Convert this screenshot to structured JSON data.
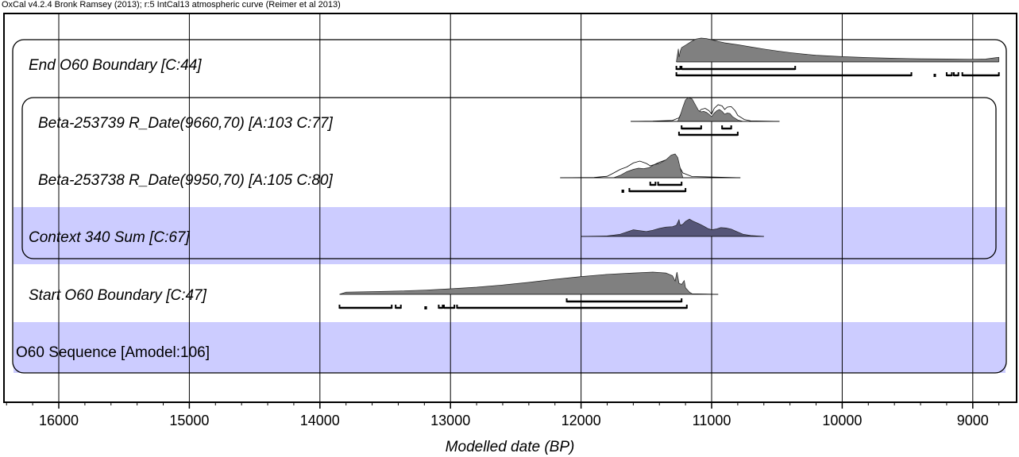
{
  "header": "OxCal v4.2.4 Bronk Ramsey (2013); r:5 IntCal13 atmospheric curve (Reimer et al 2013)",
  "chart_data": {
    "type": "area",
    "title": "",
    "xlabel": "Modelled date (BP)",
    "ylabel": "",
    "xlim": [
      16400,
      8750
    ],
    "x_reversed": true,
    "grid": true,
    "ticks": [
      16000,
      15000,
      14000,
      13000,
      12000,
      11000,
      10000,
      9000
    ],
    "tick_labels": [
      "16000",
      "15000",
      "14000",
      "13000",
      "12000",
      "11000",
      "10000",
      "9000"
    ],
    "rows": [
      {
        "label": "End O60 Boundary [C:44]",
        "shaded": false,
        "prior": null,
        "posterior": [
          [
            11270,
            0
          ],
          [
            11265,
            0.18
          ],
          [
            11255,
            0.55
          ],
          [
            11250,
            0.2
          ],
          [
            11240,
            0.45
          ],
          [
            11230,
            0.6
          ],
          [
            11200,
            0.7
          ],
          [
            11160,
            0.84
          ],
          [
            11120,
            0.96
          ],
          [
            11080,
            1.0
          ],
          [
            11040,
            0.98
          ],
          [
            11000,
            0.93
          ],
          [
            10950,
            0.86
          ],
          [
            10900,
            0.8
          ],
          [
            10800,
            0.72
          ],
          [
            10700,
            0.63
          ],
          [
            10600,
            0.54
          ],
          [
            10500,
            0.46
          ],
          [
            10400,
            0.39
          ],
          [
            10300,
            0.33
          ],
          [
            10200,
            0.28
          ],
          [
            10000,
            0.22
          ],
          [
            9800,
            0.18
          ],
          [
            9600,
            0.15
          ],
          [
            9400,
            0.13
          ],
          [
            9200,
            0.12
          ],
          [
            9000,
            0.11
          ],
          [
            8900,
            0.12
          ],
          [
            8820,
            0.18
          ],
          [
            8800,
            0.19
          ],
          [
            8800,
            0
          ]
        ],
        "range_68": [
          [
            11270,
            11240
          ],
          [
            11230,
            10360
          ]
        ],
        "range_95": [
          [
            11270,
            9470
          ],
          [
            9300,
            9285
          ],
          [
            9200,
            9160
          ],
          [
            9145,
            9110
          ],
          [
            9080,
            8800
          ]
        ]
      },
      {
        "label": "Beta-253739 R_Date(9660,70) [A:103 C:77]",
        "shaded": false,
        "prior": [
          [
            11620,
            0
          ],
          [
            11450,
            0.01
          ],
          [
            11300,
            0.04
          ],
          [
            11250,
            0.15
          ],
          [
            11220,
            0.5
          ],
          [
            11200,
            0.8
          ],
          [
            11180,
            0.9
          ],
          [
            11150,
            0.85
          ],
          [
            11120,
            0.6
          ],
          [
            11100,
            0.4
          ],
          [
            11080,
            0.5
          ],
          [
            11050,
            0.55
          ],
          [
            11020,
            0.45
          ],
          [
            11000,
            0.3
          ],
          [
            10980,
            0.55
          ],
          [
            10950,
            0.7
          ],
          [
            10920,
            0.65
          ],
          [
            10900,
            0.5
          ],
          [
            10880,
            0.6
          ],
          [
            10850,
            0.62
          ],
          [
            10820,
            0.45
          ],
          [
            10800,
            0.25
          ],
          [
            10750,
            0.08
          ],
          [
            10700,
            0.02
          ],
          [
            10480,
            0
          ]
        ],
        "posterior": [
          [
            11260,
            0
          ],
          [
            11240,
            0.25
          ],
          [
            11220,
            0.6
          ],
          [
            11200,
            0.9
          ],
          [
            11180,
            1.0
          ],
          [
            11150,
            0.95
          ],
          [
            11120,
            0.65
          ],
          [
            11100,
            0.45
          ],
          [
            11080,
            0.4
          ],
          [
            11060,
            0.42
          ],
          [
            11040,
            0.38
          ],
          [
            11020,
            0.3
          ],
          [
            11000,
            0.2
          ],
          [
            10980,
            0.35
          ],
          [
            10960,
            0.45
          ],
          [
            10940,
            0.5
          ],
          [
            10920,
            0.42
          ],
          [
            10900,
            0.3
          ],
          [
            10880,
            0.35
          ],
          [
            10860,
            0.33
          ],
          [
            10840,
            0.2
          ],
          [
            10800,
            0.06
          ],
          [
            10760,
            0
          ]
        ],
        "range_68": [
          [
            11230,
            11080
          ],
          [
            10920,
            10850
          ]
        ],
        "range_95": [
          [
            11250,
            10800
          ]
        ]
      },
      {
        "label": "Beta-253738 R_Date(9950,70) [A:105 C:80]",
        "shaded": false,
        "prior": [
          [
            12160,
            0
          ],
          [
            11900,
            0.01
          ],
          [
            11800,
            0.06
          ],
          [
            11750,
            0.2
          ],
          [
            11700,
            0.35
          ],
          [
            11650,
            0.45
          ],
          [
            11600,
            0.62
          ],
          [
            11550,
            0.7
          ],
          [
            11500,
            0.6
          ],
          [
            11470,
            0.5
          ],
          [
            11440,
            0.55
          ],
          [
            11400,
            0.65
          ],
          [
            11350,
            0.75
          ],
          [
            11300,
            0.85
          ],
          [
            11270,
            0.8
          ],
          [
            11250,
            0.5
          ],
          [
            11220,
            0.2
          ],
          [
            11150,
            0.05
          ],
          [
            10780,
            0
          ]
        ],
        "posterior": [
          [
            11750,
            0
          ],
          [
            11700,
            0.1
          ],
          [
            11650,
            0.25
          ],
          [
            11600,
            0.35
          ],
          [
            11560,
            0.4
          ],
          [
            11520,
            0.38
          ],
          [
            11480,
            0.42
          ],
          [
            11440,
            0.55
          ],
          [
            11400,
            0.6
          ],
          [
            11350,
            0.75
          ],
          [
            11310,
            0.95
          ],
          [
            11280,
            1.0
          ],
          [
            11260,
            0.85
          ],
          [
            11240,
            0.4
          ],
          [
            11220,
            0
          ]
        ],
        "range_68": [
          [
            11470,
            11430
          ],
          [
            11410,
            11230
          ]
        ],
        "range_95": [
          [
            11690,
            11670
          ],
          [
            11630,
            11200
          ]
        ]
      },
      {
        "label": "Context 340 Sum [C:67]",
        "shaded": true,
        "prior": null,
        "posterior": [
          [
            12000,
            0
          ],
          [
            11800,
            0.02
          ],
          [
            11750,
            0.06
          ],
          [
            11700,
            0.1
          ],
          [
            11650,
            0.2
          ],
          [
            11600,
            0.3
          ],
          [
            11550,
            0.26
          ],
          [
            11500,
            0.22
          ],
          [
            11450,
            0.28
          ],
          [
            11400,
            0.36
          ],
          [
            11350,
            0.42
          ],
          [
            11300,
            0.44
          ],
          [
            11270,
            0.5
          ],
          [
            11250,
            0.75
          ],
          [
            11240,
            0.5
          ],
          [
            11220,
            0.55
          ],
          [
            11200,
            0.68
          ],
          [
            11170,
            0.78
          ],
          [
            11140,
            0.68
          ],
          [
            11100,
            0.58
          ],
          [
            11060,
            0.46
          ],
          [
            11030,
            0.36
          ],
          [
            11000,
            0.3
          ],
          [
            10960,
            0.34
          ],
          [
            10930,
            0.4
          ],
          [
            10890,
            0.38
          ],
          [
            10850,
            0.33
          ],
          [
            10800,
            0.2
          ],
          [
            10760,
            0.1
          ],
          [
            10700,
            0.04
          ],
          [
            10600,
            0
          ]
        ],
        "range_68": [],
        "range_95": []
      },
      {
        "label": "Start O60 Boundary [C:47]",
        "shaded": false,
        "prior": null,
        "posterior": [
          [
            13850,
            0
          ],
          [
            13800,
            0.1
          ],
          [
            13600,
            0.12
          ],
          [
            13400,
            0.15
          ],
          [
            13200,
            0.19
          ],
          [
            13000,
            0.25
          ],
          [
            12800,
            0.32
          ],
          [
            12600,
            0.42
          ],
          [
            12400,
            0.54
          ],
          [
            12200,
            0.68
          ],
          [
            12000,
            0.8
          ],
          [
            11800,
            0.9
          ],
          [
            11600,
            0.96
          ],
          [
            11450,
            1.0
          ],
          [
            11350,
            0.96
          ],
          [
            11300,
            0.84
          ],
          [
            11280,
            0.6
          ],
          [
            11265,
            1.0
          ],
          [
            11250,
            0.5
          ],
          [
            11230,
            0.45
          ],
          [
            11210,
            0.62
          ],
          [
            11200,
            0.3
          ],
          [
            11170,
            0.1
          ],
          [
            11150,
            0.03
          ],
          [
            10950,
            0
          ]
        ],
        "range_68": [
          [
            12110,
            11230
          ]
        ],
        "range_95": [
          [
            13850,
            13450
          ],
          [
            13420,
            13380
          ],
          [
            13200,
            13180
          ],
          [
            13090,
            13060
          ],
          [
            13050,
            12970
          ],
          [
            12950,
            11190
          ]
        ]
      },
      {
        "label": "O60 Sequence [Amodel:106]",
        "shaded": true,
        "prior": null,
        "posterior": [],
        "range_68": [],
        "range_95": []
      }
    ]
  }
}
